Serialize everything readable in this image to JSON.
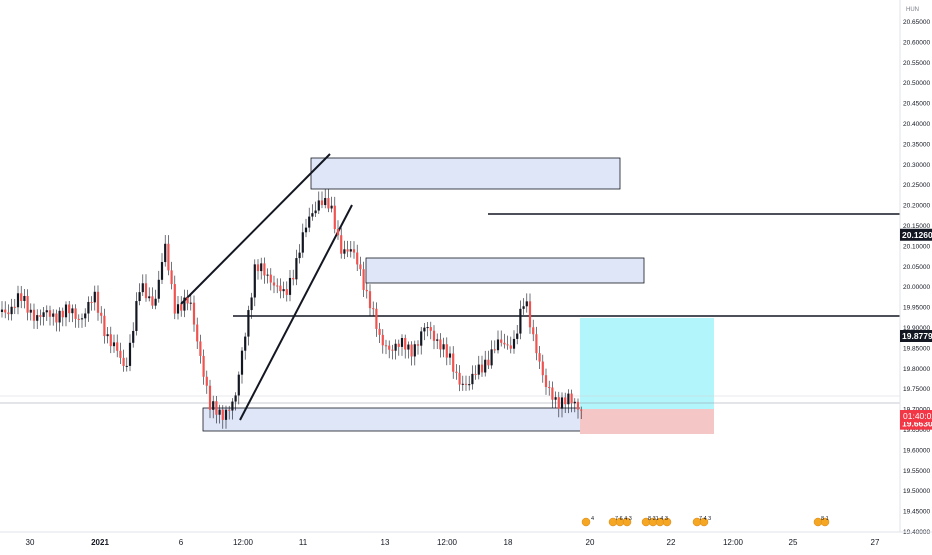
{
  "instrument": {
    "currency_unit": "HUN"
  },
  "price_axis": {
    "ticks": [
      "20.65000",
      "20.60000",
      "20.55000",
      "20.50000",
      "20.45000",
      "20.40000",
      "20.35000",
      "20.30000",
      "20.25000",
      "20.20000",
      "20.15000",
      "20.10000",
      "20.05000",
      "20.00000",
      "19.95000",
      "19.90000",
      "19.85000",
      "19.80000",
      "19.75000",
      "19.70000",
      "19.65000",
      "19.60000",
      "19.55000",
      "19.50000",
      "19.45000",
      "19.40000"
    ],
    "tick_values": [
      20.65,
      20.6,
      20.55,
      20.5,
      20.45,
      20.4,
      20.35,
      20.3,
      20.25,
      20.2,
      20.15,
      20.1,
      20.05,
      20.0,
      19.95,
      19.9,
      19.85,
      19.8,
      19.75,
      19.7,
      19.65,
      19.6,
      19.55,
      19.5,
      19.45,
      19.4
    ],
    "tags": [
      {
        "label": "20.12608",
        "value": 20.12608,
        "color": "#131722",
        "text_color": "#ffffff"
      },
      {
        "label": "19.87795",
        "value": 19.87795,
        "color": "#131722",
        "text_color": "#ffffff"
      },
      {
        "label": "19.66306",
        "value": 19.66306,
        "color": "#f23645",
        "text_color": "#ffffff"
      }
    ],
    "countdown": {
      "label": "01:40:02",
      "color": "#f23645"
    }
  },
  "time_axis": {
    "labels": [
      "30",
      "2021",
      "6",
      "12:00",
      "11",
      "13",
      "12:00",
      "18",
      "20",
      "22",
      "12:00",
      "25",
      "27"
    ]
  },
  "events": [
    {
      "label": "4"
    },
    {
      "label": "7 6 4 3"
    },
    {
      "label": "8 31 4 3"
    },
    {
      "label": "7 4 3"
    },
    {
      "label": "8 1"
    }
  ],
  "colors": {
    "bull": "#26a69a",
    "bear": "#ef5350",
    "candle": "#131722",
    "zone_fill": "#dfe6f7",
    "zone_stroke": "#131722",
    "target_fill": "#b2f5fa",
    "stop_fill": "#f5c6c6"
  }
}
